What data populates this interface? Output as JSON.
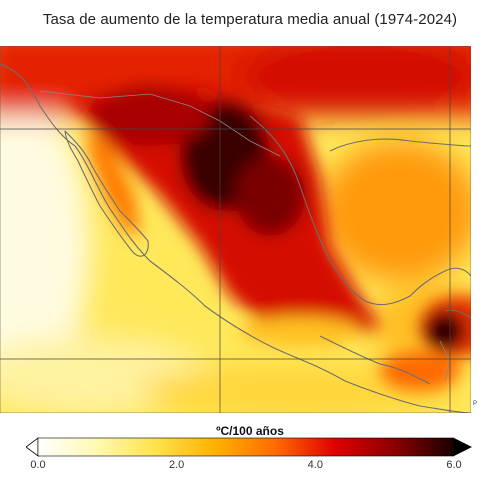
{
  "title": "Tasa de aumento de la temperatura media anual (1974-2024)",
  "credit": "P",
  "legend": {
    "title": "ºC/100 años",
    "min": 0.0,
    "max": 6.0,
    "ticks": [
      {
        "value": 0.0,
        "label": "0.0"
      },
      {
        "value": 2.0,
        "label": "2.0"
      },
      {
        "value": 4.0,
        "label": "4.0"
      },
      {
        "value": 6.0,
        "label": "6.0"
      }
    ],
    "colors": [
      "#ffffff",
      "#fff9b0",
      "#ffe14a",
      "#ffb000",
      "#ff6a00",
      "#e00000",
      "#8b0000",
      "#1a0000"
    ]
  },
  "regions": {
    "pacific_ocean": "#ffe660",
    "gulf_of_mexico": "#ff9a10",
    "caribbean": "#ffbe20",
    "usa_south": "#e42000",
    "mexico_north": "#b80000",
    "mexico_central": "#d51000",
    "yucatan": "#e53000",
    "central_america": "#ff6a00"
  }
}
